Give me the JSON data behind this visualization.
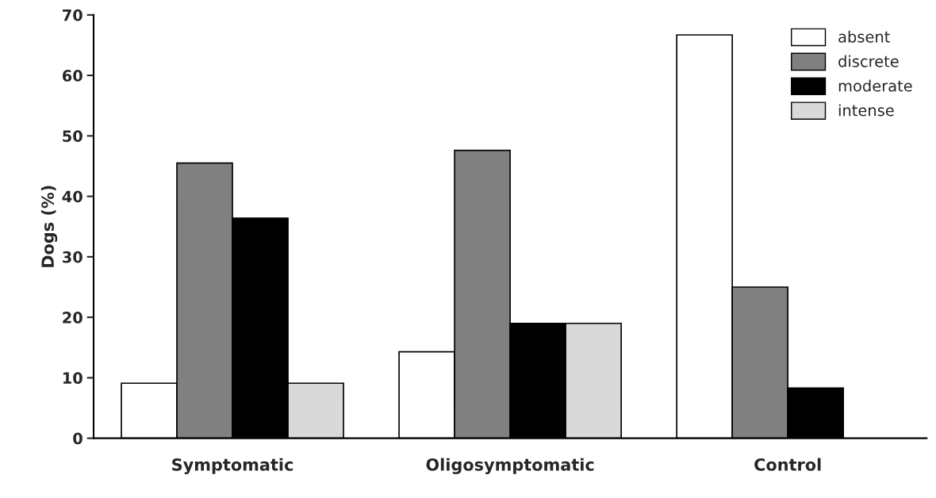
{
  "chart_data": {
    "type": "bar",
    "ylabel": "Dogs (%)",
    "categories": [
      "Symptomatic",
      "Oligosymptomatic",
      "Control"
    ],
    "series": [
      {
        "name": "absent",
        "color": "#ffffff",
        "values": [
          9.1,
          14.3,
          66.7
        ]
      },
      {
        "name": "discrete",
        "color": "#808080",
        "values": [
          45.5,
          47.6,
          25.0
        ]
      },
      {
        "name": "moderate",
        "color": "#000000",
        "values": [
          36.4,
          19.0,
          8.3
        ]
      },
      {
        "name": "intense",
        "color": "#d9d9d9",
        "values": [
          9.1,
          19.0,
          null
        ]
      }
    ],
    "ylim": [
      0,
      70
    ],
    "yticks": [
      0,
      10,
      20,
      30,
      40,
      50,
      60,
      70
    ],
    "grid": false,
    "legend": "top right"
  }
}
